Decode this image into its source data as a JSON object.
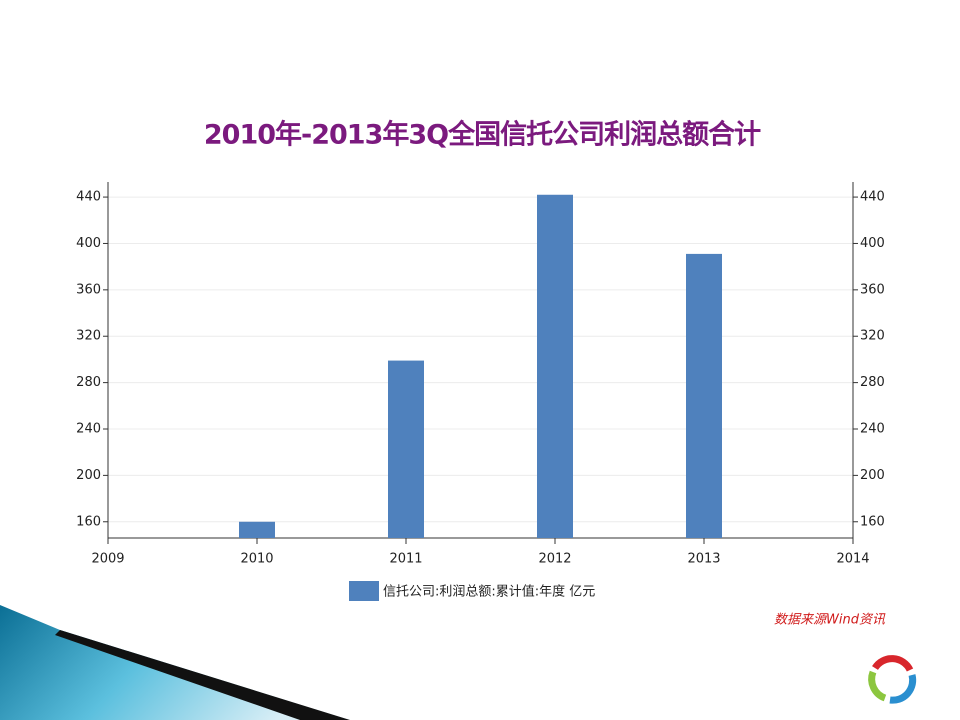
{
  "chart_data": {
    "type": "bar",
    "title": "2010年-2013年3Q全国信托公司利润总额合计",
    "x": [
      2010,
      2011,
      2012,
      2013
    ],
    "series": [
      {
        "name": "信托公司:利润总额:累计值:年度 亿元",
        "color": "#4f81bd",
        "values": [
          160,
          299,
          442,
          391
        ]
      }
    ],
    "xlim": [
      2009,
      2014
    ],
    "xticks": [
      2009,
      2010,
      2011,
      2012,
      2013,
      2014
    ],
    "ylim": [
      146,
      453
    ],
    "yticks": [
      160,
      200,
      240,
      280,
      320,
      360,
      400,
      440
    ],
    "y2lim": [
      146,
      453
    ],
    "y2ticks": [
      160,
      200,
      240,
      280,
      320,
      360,
      400,
      440
    ],
    "grid": true,
    "legend": "bottom",
    "source": "数据来源Wind资讯"
  }
}
